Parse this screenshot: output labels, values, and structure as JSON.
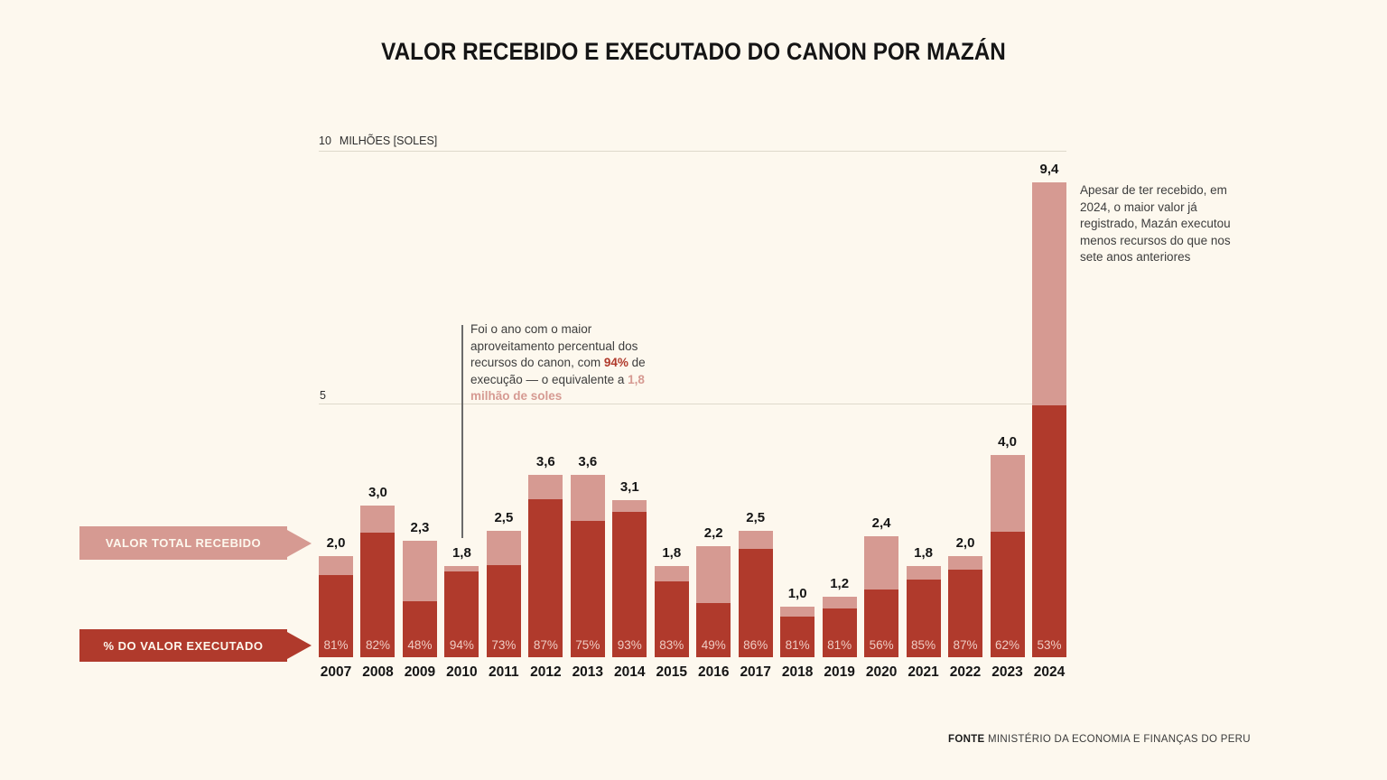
{
  "title": "VALOR RECEBIDO E EXECUTADO DO CANON POR MAZÁN",
  "y_axis": {
    "top_tick": "10",
    "unit_label": "MILHÕES [SOLES]",
    "mid_tick": "5"
  },
  "legend": {
    "received_label": "VALOR TOTAL RECEBIDO",
    "executed_label": "% DO VALOR EXECUTADO"
  },
  "annotations": {
    "a2010": {
      "text_before": "Foi o ano com o maior aproveitamento percentual dos recursos do canon, com ",
      "pct_highlight": "94%",
      "text_middle": " de execução — o equivalente a ",
      "amount_highlight": "1,8 milhão de soles"
    },
    "a2024": {
      "text": "Apesar de ter recebido, em 2024, o maior valor já registrado, Mazán executou menos recursos do que nos sete anos anteriores"
    }
  },
  "source": {
    "label": "FONTE",
    "text": " MINISTÉRIO DA ECONOMIA E FINANÇAS DO PERU"
  },
  "colors": {
    "background": "#fdf8ee",
    "dark_red": "#b03a2c",
    "pink": "#d69a92",
    "pct_text": "#efccc3",
    "gridline": "#ded9cb"
  },
  "chart_data": {
    "type": "bar",
    "stacked": true,
    "title": "VALOR RECEBIDO E EXECUTADO DO CANON POR MAZÁN",
    "ylabel": "MILHÕES [SOLES]",
    "ylim": [
      0,
      10
    ],
    "gridlines": [
      5,
      10
    ],
    "legend_position": "left",
    "categories": [
      "2007",
      "2008",
      "2009",
      "2010",
      "2011",
      "2012",
      "2013",
      "2014",
      "2015",
      "2016",
      "2017",
      "2018",
      "2019",
      "2020",
      "2021",
      "2022",
      "2023",
      "2024"
    ],
    "series": [
      {
        "name": "Valor total recebido (milhões de soles)",
        "values": [
          2.0,
          3.0,
          2.3,
          1.8,
          2.5,
          3.6,
          3.6,
          3.1,
          1.8,
          2.2,
          2.5,
          1.0,
          1.2,
          2.4,
          1.8,
          2.0,
          4.0,
          9.4
        ]
      },
      {
        "name": "% do valor executado",
        "values": [
          81,
          82,
          48,
          94,
          73,
          87,
          75,
          93,
          83,
          49,
          86,
          81,
          81,
          56,
          85,
          87,
          62,
          53
        ]
      }
    ],
    "bar_labels": [
      "2,0",
      "3,0",
      "2,3",
      "1,8",
      "2,5",
      "3,6",
      "3,6",
      "3,1",
      "1,8",
      "2,2",
      "2,5",
      "1,0",
      "1,2",
      "2,4",
      "1,8",
      "2,0",
      "4,0",
      "9,4"
    ],
    "pct_labels": [
      "81%",
      "82%",
      "48%",
      "94%",
      "73%",
      "87%",
      "75%",
      "93%",
      "83%",
      "49%",
      "86%",
      "81%",
      "81%",
      "56%",
      "85%",
      "87%",
      "62%",
      "53%"
    ]
  }
}
